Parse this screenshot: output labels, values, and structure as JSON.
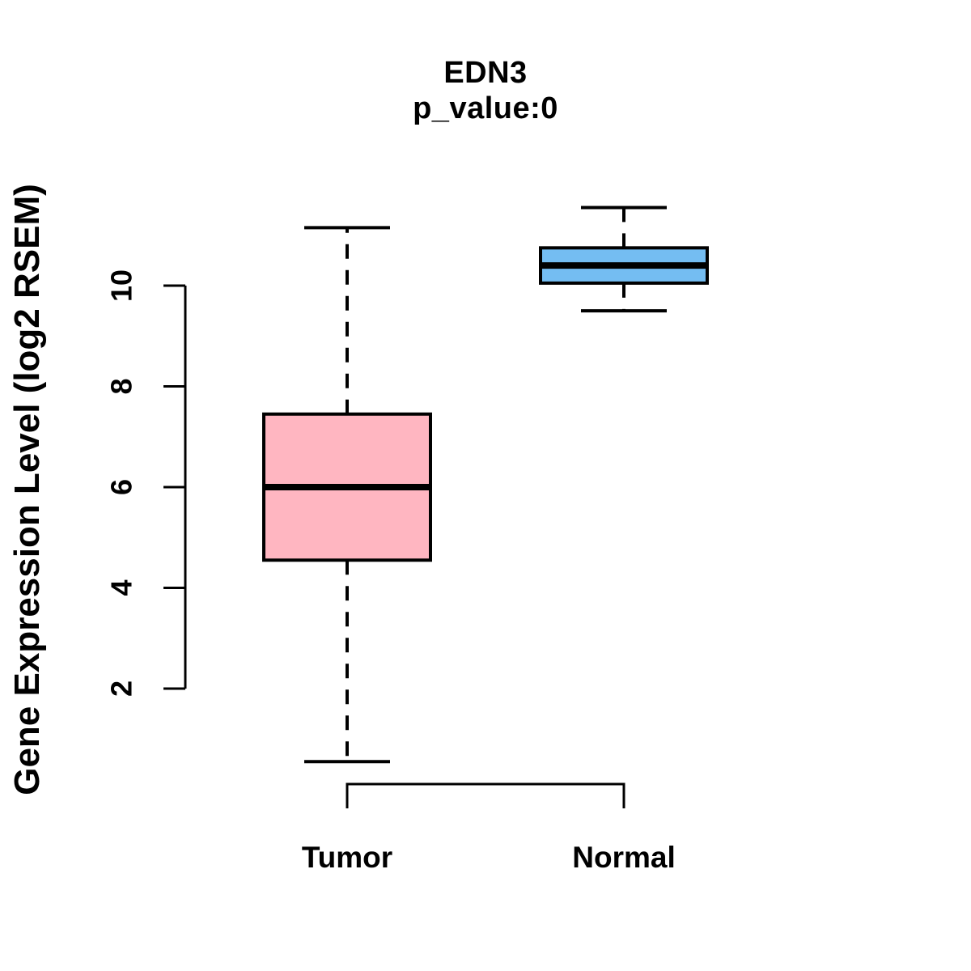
{
  "chart_data": {
    "type": "boxplot",
    "title": "EDN3",
    "subtitle": "p_value:0",
    "ylabel": "Gene Expression Level (log2 RSEM)",
    "xlabel": "",
    "categories": [
      "Tumor",
      "Normal"
    ],
    "y_ticks": [
      2,
      4,
      6,
      8,
      10
    ],
    "ylim": [
      0.4,
      11.7
    ],
    "grid": false,
    "legend": "none",
    "background_color": "#ffffff",
    "line_color": "#000000",
    "series": [
      {
        "name": "Tumor",
        "fill_color": "#FFB6C1",
        "border_color": "#000000",
        "whisker_low": 0.55,
        "q1": 4.55,
        "median": 6.0,
        "q3": 7.45,
        "whisker_high": 11.15
      },
      {
        "name": "Normal",
        "fill_color": "#74BDF2",
        "border_color": "#000000",
        "whisker_low": 9.5,
        "q1": 10.05,
        "median": 10.4,
        "q3": 10.75,
        "whisker_high": 11.55
      }
    ]
  }
}
